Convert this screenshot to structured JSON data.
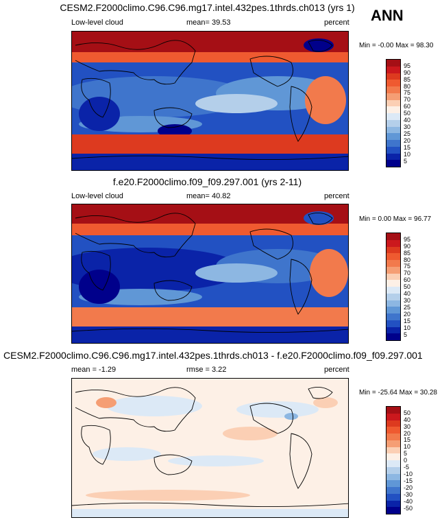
{
  "season": "ANN",
  "panels": [
    {
      "title": "CESM2.F2000climo.C96.C96.mg17.intel.432pes.1thrds.ch013 (yrs 1)",
      "left_label": "Low-level cloud",
      "center_label": "mean=  39.53",
      "units": "percent",
      "minmax": "Min =  -0.00 Max =  98.30",
      "colorbar_levels": [
        "95",
        "90",
        "85",
        "80",
        "75",
        "70",
        "60",
        "50",
        "40",
        "30",
        "25",
        "20",
        "15",
        "10",
        "5"
      ]
    },
    {
      "title": "f.e20.F2000climo.f09_f09.297.001 (yrs 2-11)",
      "left_label": "Low-level cloud",
      "center_label": "mean=  40.82",
      "units": "percent",
      "minmax": "Min =   0.00 Max =  96.77",
      "colorbar_levels": [
        "95",
        "90",
        "85",
        "80",
        "75",
        "70",
        "60",
        "50",
        "40",
        "30",
        "25",
        "20",
        "15",
        "10",
        "5"
      ]
    },
    {
      "title": "CESM2.F2000climo.C96.C96.mg17.intel.432pes.1thrds.ch013 - f.e20.F2000climo.f09_f09.297.001",
      "left_label": "mean =  -1.29",
      "center_label": "rmse =   3.22",
      "units": "percent",
      "minmax": "Min = -25.64 Max =  30.28",
      "colorbar_levels": [
        "50",
        "40",
        "30",
        "20",
        "15",
        "10",
        "5",
        "0",
        "-5",
        "-10",
        "-15",
        "-20",
        "-30",
        "-40",
        "-50"
      ]
    }
  ],
  "colors": {
    "abs_scale": [
      "#a50f15",
      "#cb181d",
      "#dd3a1f",
      "#ef5a30",
      "#f27a4c",
      "#f59e74",
      "#fbcfb4",
      "#fdf0e6",
      "#dce9f6",
      "#b4cfea",
      "#8db7e2",
      "#6097d6",
      "#3f75cc",
      "#2251c2",
      "#0a23a8",
      "#00008b"
    ],
    "diff_scale": [
      "#a50f15",
      "#cb181d",
      "#dd3a1f",
      "#ef5a30",
      "#f27a4c",
      "#f59e74",
      "#fbcfb4",
      "#fdf0e6",
      "#dce9f6",
      "#b4cfea",
      "#8db7e2",
      "#6097d6",
      "#3f75cc",
      "#2251c2",
      "#0a23a8",
      "#00008b"
    ]
  }
}
